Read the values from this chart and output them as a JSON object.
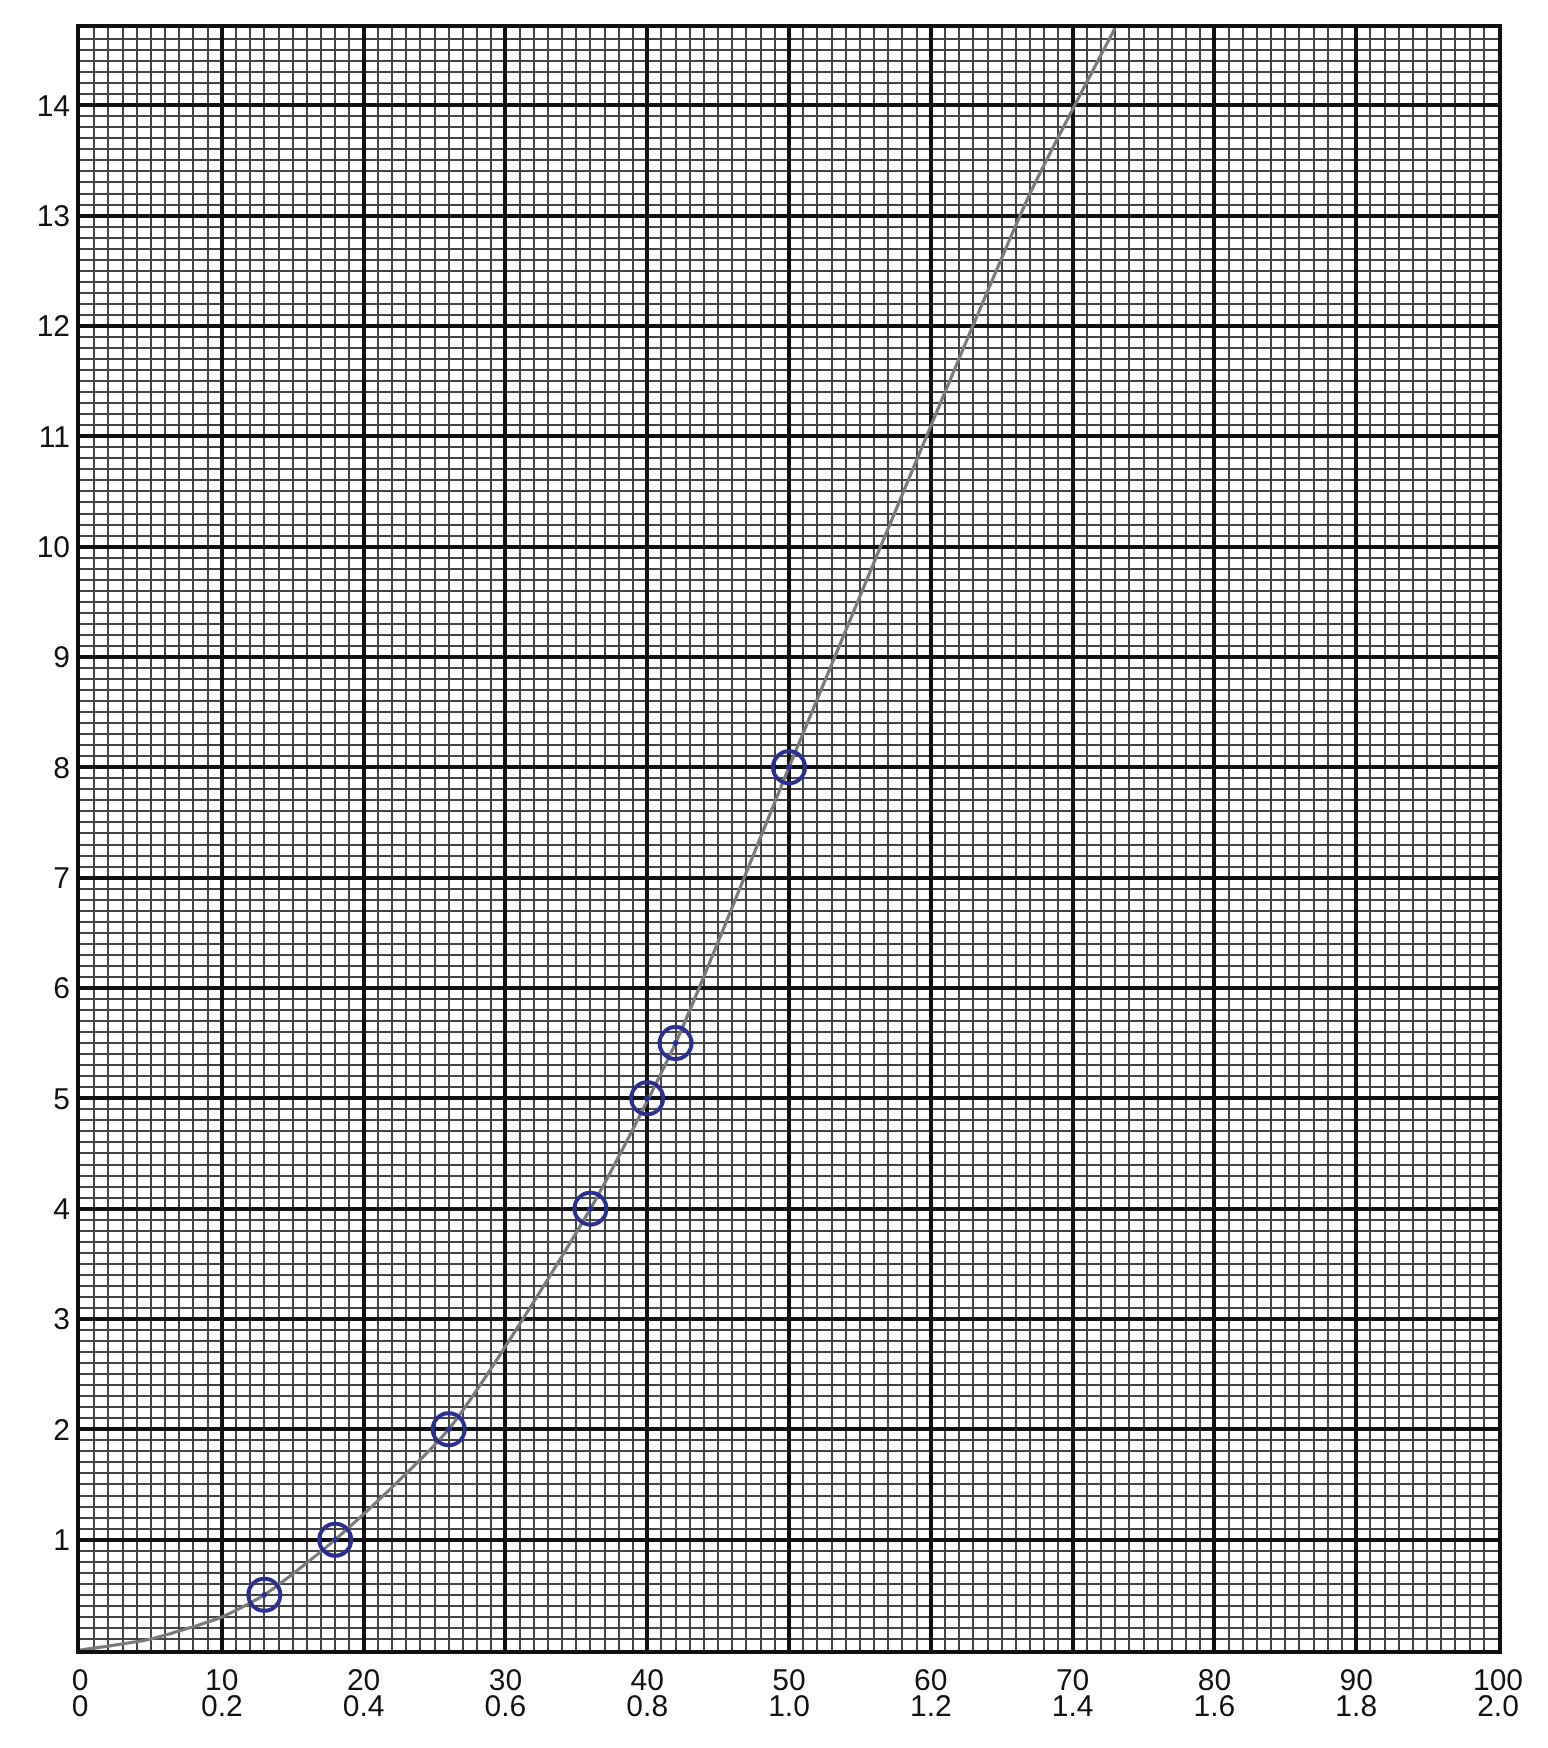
{
  "chart_data": {
    "type": "scatter",
    "xlim": [
      0,
      100
    ],
    "xticks": [
      0,
      10,
      20,
      30,
      40,
      50,
      60,
      70,
      80,
      90,
      100
    ],
    "x2lim": [
      0,
      2
    ],
    "x2ticks": [
      0,
      0.2,
      0.4,
      0.6,
      0.8,
      {
        "value": 1,
        "label": "1.0"
      },
      1.2,
      1.4,
      1.6,
      1.8,
      {
        "value": 2,
        "label": "2.0"
      }
    ],
    "ylim": [
      0,
      14.7
    ],
    "yticks": [
      1,
      2,
      3,
      4,
      5,
      6,
      7,
      8,
      9,
      10,
      11,
      12,
      13,
      14
    ],
    "grid": true,
    "series": [
      {
        "type": "line",
        "color": "#7a7a7a",
        "marker": "none",
        "line_style": "solid",
        "x": [
          0,
          5,
          10,
          13,
          18,
          26,
          36,
          42,
          50,
          61,
          67,
          73
        ],
        "values": [
          0,
          0.1,
          0.3,
          0.5,
          1.0,
          2.0,
          4.0,
          5.5,
          8.0,
          11.4,
          13.2,
          14.7
        ]
      },
      {
        "color": "#2b2f8f",
        "marker": "circle",
        "x": [
          13,
          18,
          26,
          36,
          40,
          42,
          50
        ],
        "values": [
          0.5,
          1.0,
          2.0,
          4.0,
          5.0,
          5.5,
          8.0
        ]
      }
    ]
  }
}
